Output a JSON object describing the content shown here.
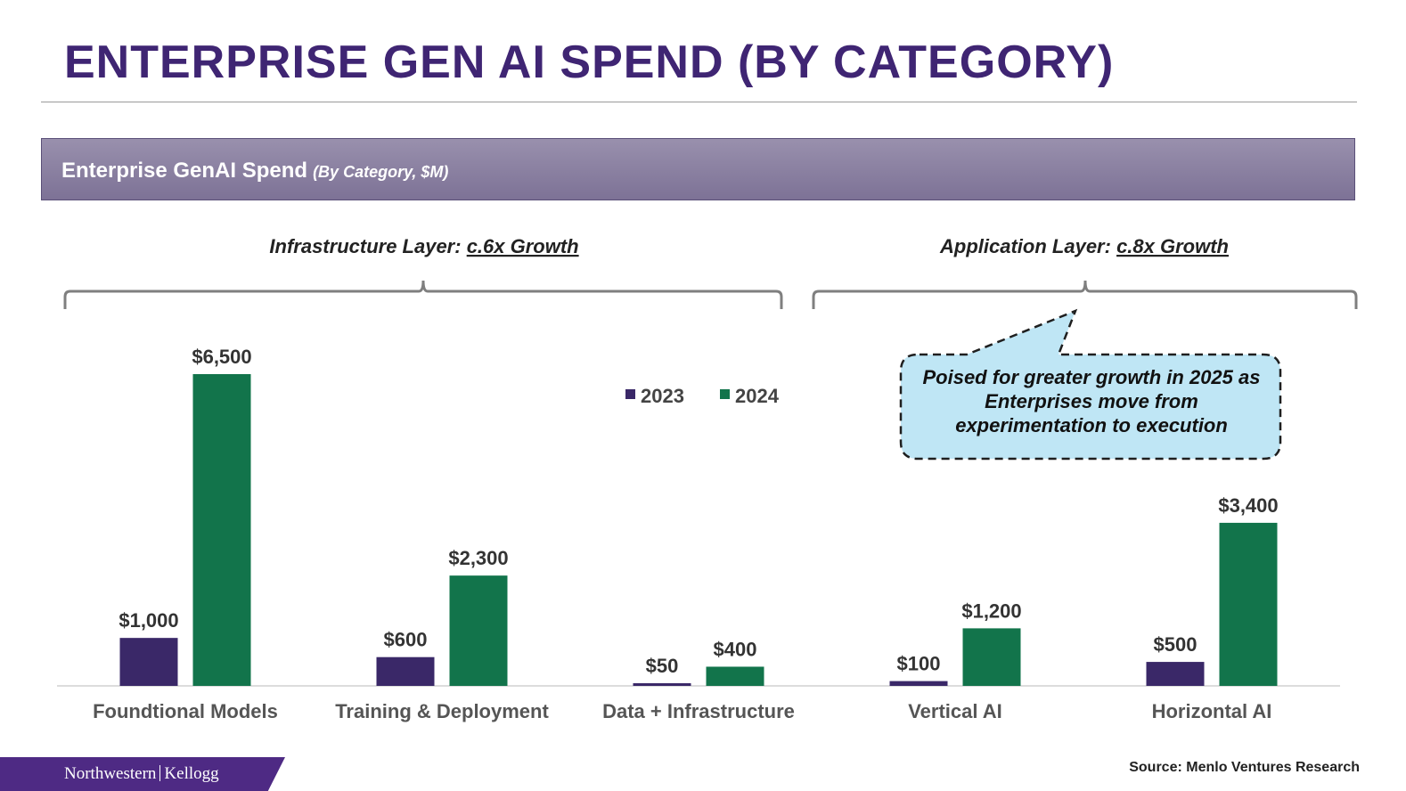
{
  "slide": {
    "title": "ENTERPRISE GEN AI SPEND (BY CATEGORY)",
    "banner_title": "Enterprise GenAI Spend",
    "banner_subtitle": "(By Category, $M)",
    "source": "Source: Menlo Ventures Research",
    "brand_left": "Northwestern",
    "brand_right": "Kellogg"
  },
  "groups": [
    {
      "label_prefix": "Infrastructure Layer: ",
      "label_emph": "c.6x Growth"
    },
    {
      "label_prefix": "Application Layer: ",
      "label_emph": "c.8x Growth"
    }
  ],
  "callout": {
    "text": "Poised for greater growth in 2025 as Enterprises move from experimentation to execution",
    "fill": "#bfe6f5"
  },
  "chart_data": {
    "type": "bar",
    "categories": [
      "Foundtional Models",
      "Training & Deployment",
      "Data + Infrastructure",
      "Vertical AI",
      "Horizontal AI"
    ],
    "series": [
      {
        "name": "2023",
        "values": [
          1000,
          600,
          50,
          100,
          500
        ],
        "labels": [
          "$1,000",
          "$600",
          "$50",
          "$100",
          "$500"
        ],
        "color": "#3a2868"
      },
      {
        "name": "2024",
        "values": [
          6500,
          2300,
          400,
          1200,
          3400
        ],
        "labels": [
          "$6,500",
          "$2,300",
          "$400",
          "$1,200",
          "$3,400"
        ],
        "color": "#12744b"
      }
    ],
    "ylim": [
      0,
      6500
    ],
    "grid": false,
    "legend": "top-right"
  }
}
